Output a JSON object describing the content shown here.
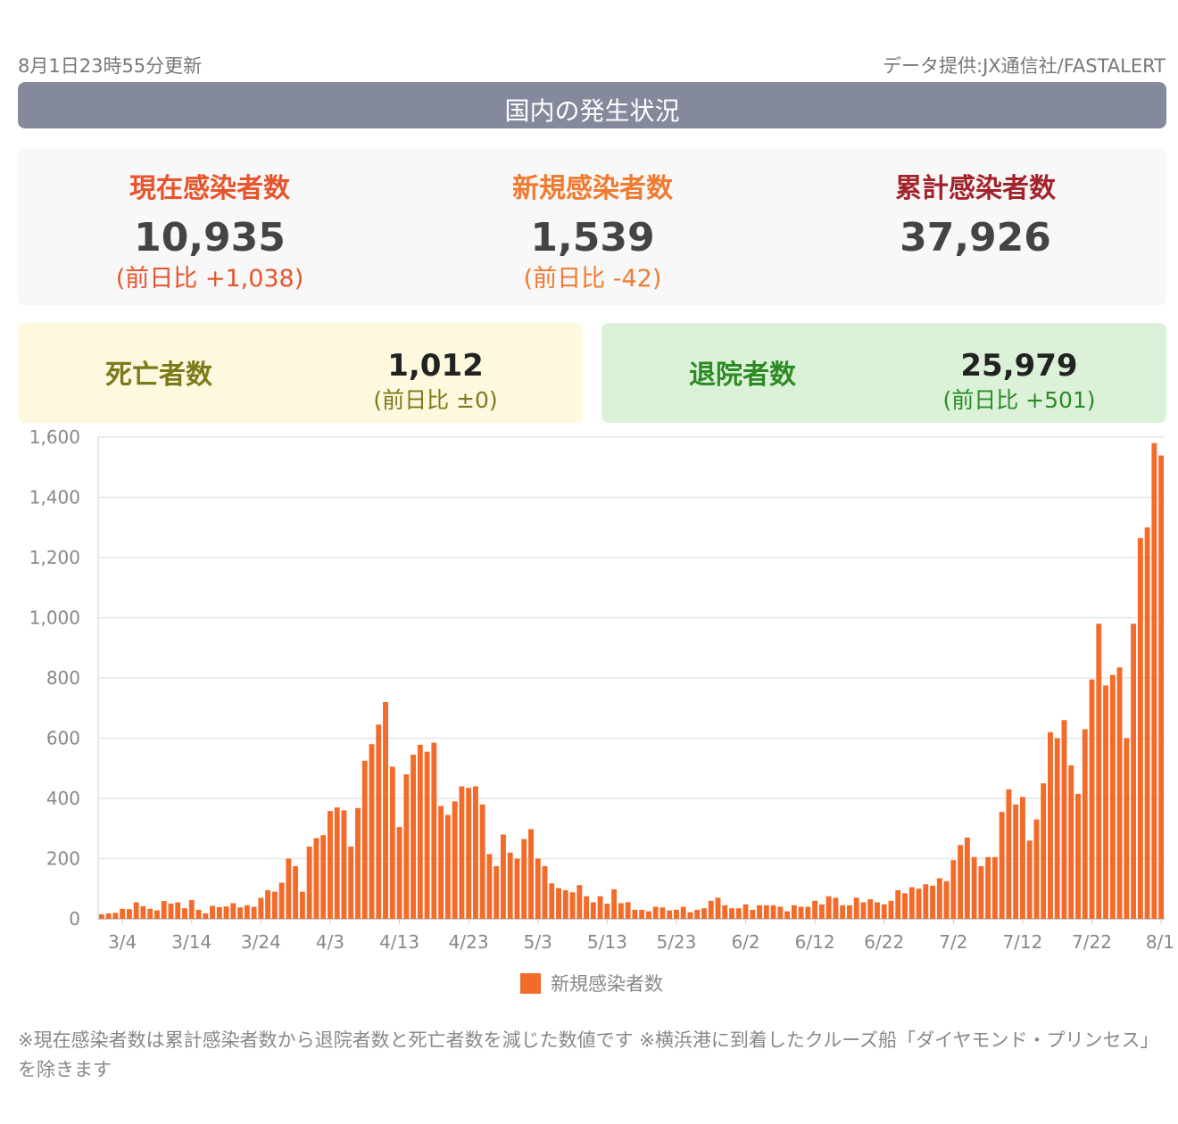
{
  "update_time": "8月1日23時55分更新",
  "source": "データ提供:JX通信社/FASTALERT",
  "header": {
    "title": "国内の発生状況"
  },
  "stats": [
    {
      "label": "現在感染者数",
      "value": "10,935",
      "diff": "(前日比 +1,038)",
      "color": "#e8542b",
      "diff_color": "#e8542b"
    },
    {
      "label": "新規感染者数",
      "value": "1,539",
      "diff": "(前日比 -42)",
      "color": "#f07a30",
      "diff_color": "#f07a30"
    },
    {
      "label": "累計感染者数",
      "value": "37,926",
      "diff": "",
      "color": "#a3232c",
      "diff_color": "#a3232c"
    }
  ],
  "deaths": {
    "label": "死亡者数",
    "value": "1,012",
    "diff": "(前日比 ±0)",
    "bg": "#fdf8de",
    "color": "#7d7a1a"
  },
  "recovered": {
    "label": "退院者数",
    "value": "25,979",
    "diff": "(前日比 +501)",
    "bg": "#dbf2d8",
    "color": "#2d8a25"
  },
  "chart_data": {
    "type": "bar",
    "title": "",
    "xlabel": "",
    "ylabel": "",
    "ylim": [
      0,
      1600
    ],
    "y_ticks": [
      "0",
      "200",
      "400",
      "600",
      "800",
      "1,000",
      "1,200",
      "1,400",
      "1,600"
    ],
    "x_tick_labels": [
      "3/4",
      "3/14",
      "3/24",
      "4/3",
      "4/13",
      "4/23",
      "5/3",
      "5/13",
      "5/23",
      "6/2",
      "6/12",
      "6/22",
      "7/2",
      "7/12",
      "7/22",
      "8/1"
    ],
    "x_start": "3/1",
    "x_end": "8/1",
    "legend": {
      "label": "新規感染者数",
      "position": "bottom"
    },
    "color": "#f26b2a",
    "grid": true,
    "values": [
      15,
      18,
      20,
      33,
      32,
      55,
      42,
      33,
      28,
      59,
      51,
      55,
      35,
      62,
      30,
      18,
      43,
      39,
      41,
      52,
      38,
      45,
      40,
      70,
      95,
      90,
      120,
      200,
      175,
      90,
      240,
      268,
      278,
      358,
      370,
      360,
      240,
      368,
      525,
      580,
      645,
      720,
      505,
      305,
      480,
      545,
      578,
      555,
      585,
      375,
      345,
      390,
      440,
      435,
      440,
      380,
      215,
      175,
      280,
      220,
      200,
      265,
      298,
      200,
      175,
      118,
      102,
      95,
      88,
      112,
      75,
      55,
      75,
      50,
      98,
      52,
      55,
      30,
      30,
      25,
      40,
      38,
      28,
      30,
      40,
      22,
      30,
      35,
      60,
      70,
      45,
      35,
      35,
      48,
      30,
      45,
      45,
      45,
      40,
      25,
      45,
      40,
      40,
      60,
      48,
      75,
      70,
      45,
      45,
      70,
      55,
      65,
      55,
      48,
      60,
      95,
      85,
      105,
      100,
      115,
      110,
      135,
      125,
      195,
      245,
      270,
      205,
      175,
      205,
      205,
      355,
      430,
      380,
      405,
      260,
      330,
      450,
      620,
      600,
      660,
      510,
      415,
      630,
      795,
      980,
      775,
      810,
      835,
      600,
      980,
      1265,
      1300,
      1580,
      1539
    ]
  },
  "footnote": "※現在感染者数は累計感染者数から退院者数と死亡者数を減じた数値です ※横浜港に到着したクルーズ船「ダイヤモンド・プリンセス」を除きます"
}
